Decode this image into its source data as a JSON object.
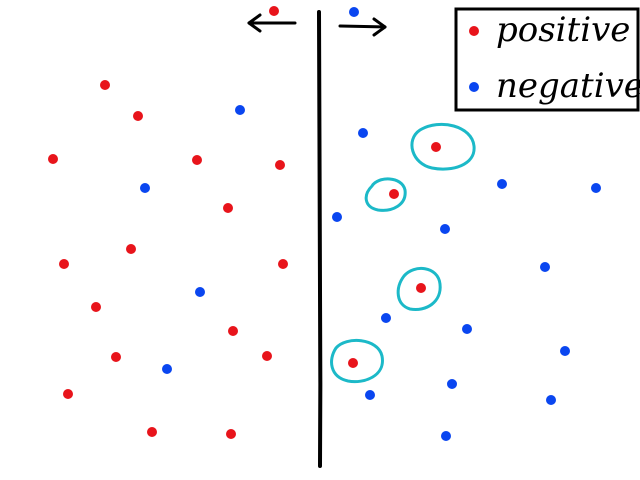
{
  "legend": {
    "items": [
      {
        "label": "positive",
        "color": "#e8141b"
      },
      {
        "label": "negative",
        "color": "#0a46f0"
      }
    ]
  },
  "colors": {
    "positive": "#e8141b",
    "negative": "#0a46f0",
    "highlight": "#1cb9c8",
    "line": "#000000"
  },
  "arrows": {
    "left": "arrow-left-icon",
    "right": "arrow-right-icon"
  }
}
